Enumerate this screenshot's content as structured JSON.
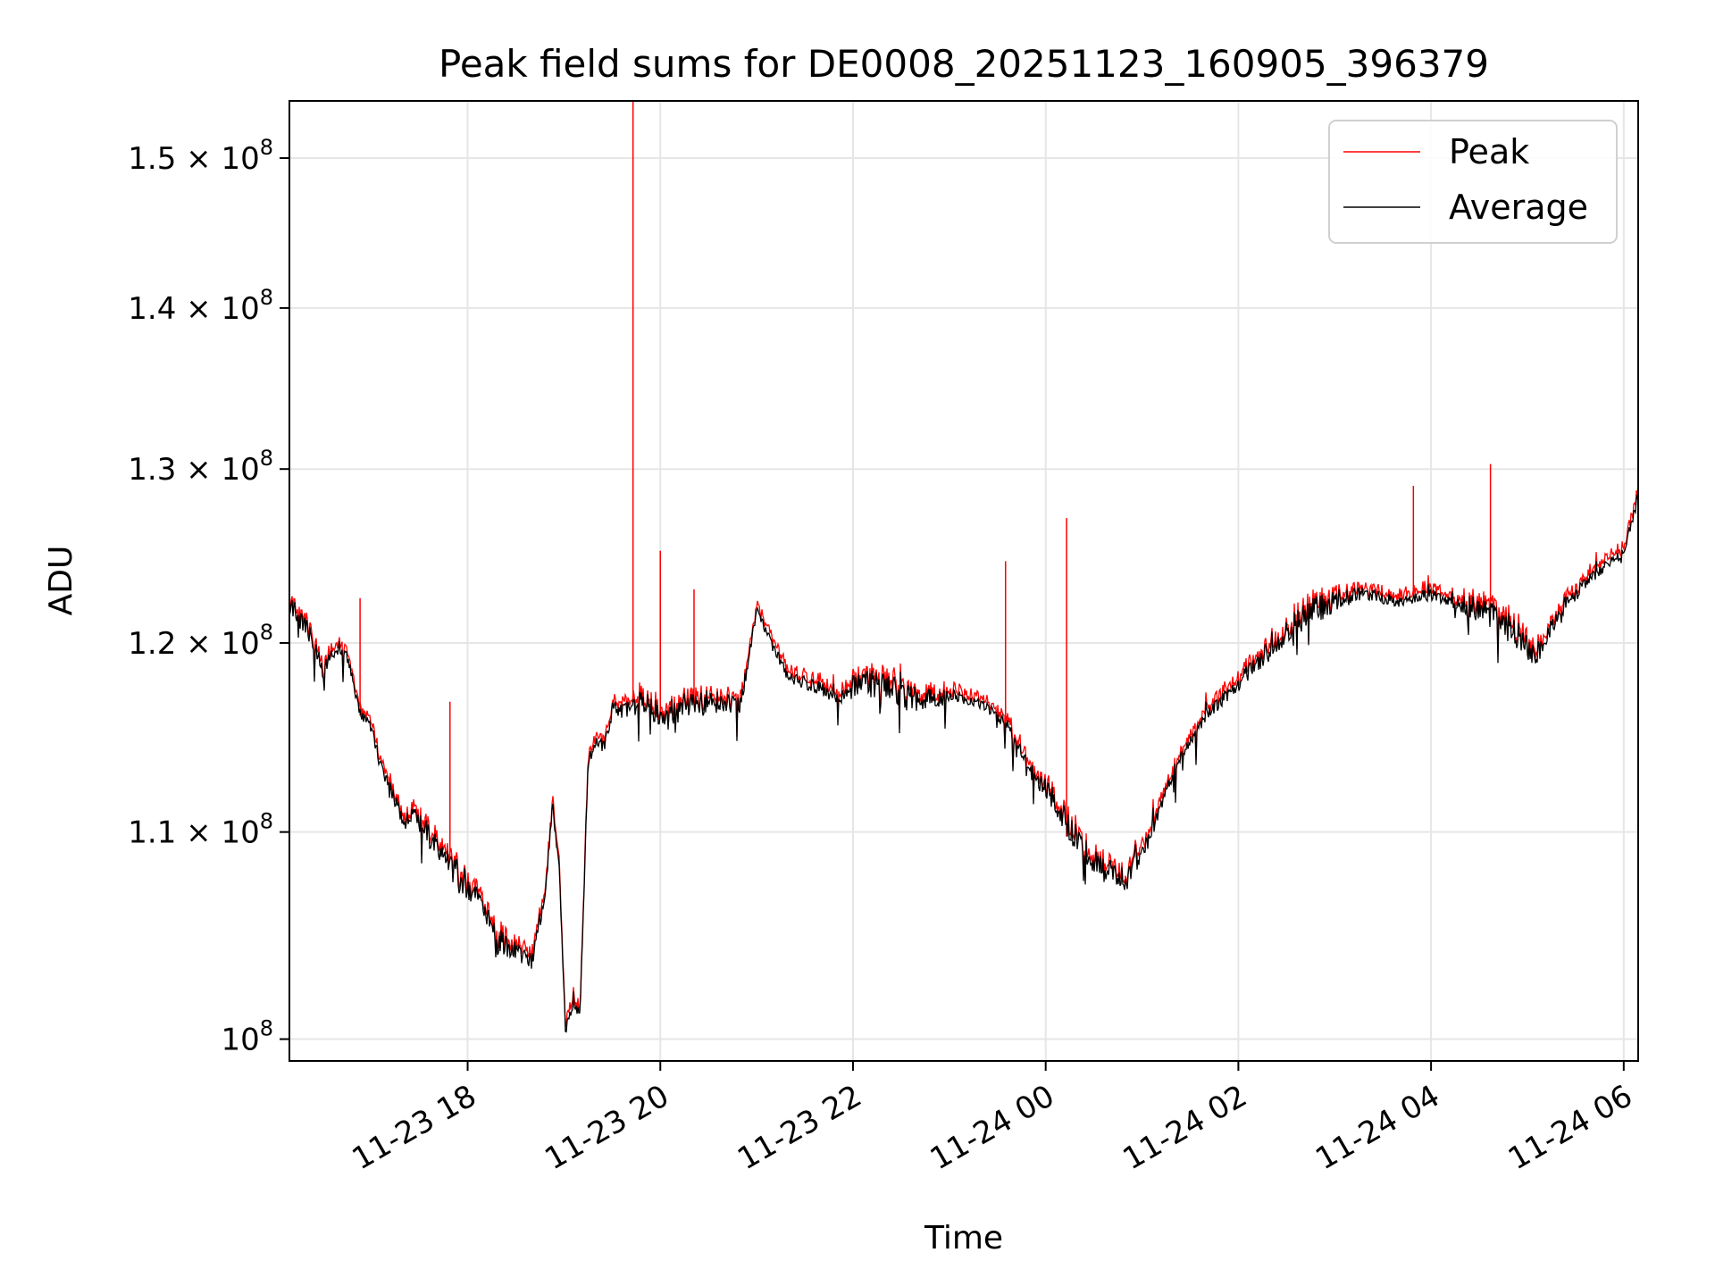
{
  "chart_data": {
    "type": "line",
    "title": "Peak field sums for DE0008_20251123_160905_396379",
    "xlabel": "Time",
    "ylabel": "ADU",
    "y_scale": "log",
    "grid": true,
    "legend_position": "top-right",
    "x_tick_labels": [
      "11-23 18",
      "11-23 20",
      "11-23 22",
      "11-24 00",
      "11-24 02",
      "11-24 04",
      "11-24 06"
    ],
    "x_tick_times": [
      "2025-11-23T18:00",
      "2025-11-23T20:00",
      "2025-11-23T22:00",
      "2025-11-24T00:00",
      "2025-11-24T02:00",
      "2025-11-24T04:00",
      "2025-11-24T06:00"
    ],
    "xlim": [
      "2025-11-23T16:09",
      "2025-11-24T06:09"
    ],
    "ylim": [
      99000000,
      154000000
    ],
    "y_ticks": [
      {
        "value": 100000000,
        "mantissa": "",
        "exponent": "8",
        "label": "10"
      },
      {
        "value": 110000000,
        "mantissa": "1.1",
        "exponent": "8",
        "label": "10"
      },
      {
        "value": 120000000,
        "mantissa": "1.2",
        "exponent": "8",
        "label": "10"
      },
      {
        "value": 130000000,
        "mantissa": "1.3",
        "exponent": "8",
        "label": "10"
      },
      {
        "value": 140000000,
        "mantissa": "1.4",
        "exponent": "8",
        "label": "10"
      },
      {
        "value": 150000000,
        "mantissa": "1.5",
        "exponent": "8",
        "label": "10"
      }
    ],
    "series": [
      {
        "name": "Peak",
        "color": "#ff0000",
        "spikes": [
          {
            "x": "2025-11-23T16:53",
            "y": 122500000
          },
          {
            "x": "2025-11-23T17:49",
            "y": 116800000
          },
          {
            "x": "2025-11-23T19:43",
            "y": 154000000
          },
          {
            "x": "2025-11-23T20:00",
            "y": 125200000
          },
          {
            "x": "2025-11-23T20:21",
            "y": 123000000
          },
          {
            "x": "2025-11-23T23:35",
            "y": 124600000
          },
          {
            "x": "2025-11-24T00:13",
            "y": 127100000
          },
          {
            "x": "2025-11-24T03:49",
            "y": 129000000
          },
          {
            "x": "2025-11-24T04:37",
            "y": 130300000
          }
        ]
      },
      {
        "name": "Average",
        "color": "#000000",
        "x": [
          "2025-11-23T16:09",
          "2025-11-23T16:22",
          "2025-11-23T16:30",
          "2025-11-23T16:37",
          "2025-11-23T16:45",
          "2025-11-23T16:53",
          "2025-11-23T17:00",
          "2025-11-23T17:06",
          "2025-11-23T17:13",
          "2025-11-23T17:20",
          "2025-11-23T17:27",
          "2025-11-23T17:36",
          "2025-11-23T17:47",
          "2025-11-23T17:58",
          "2025-11-23T18:09",
          "2025-11-23T18:20",
          "2025-11-23T18:30",
          "2025-11-23T18:40",
          "2025-11-23T18:48",
          "2025-11-23T18:53",
          "2025-11-23T18:57",
          "2025-11-23T19:01",
          "2025-11-23T19:05",
          "2025-11-23T19:10",
          "2025-11-23T19:15",
          "2025-11-23T19:20",
          "2025-11-23T19:25",
          "2025-11-23T19:30",
          "2025-11-23T19:36",
          "2025-11-23T19:43",
          "2025-11-23T19:50",
          "2025-11-23T19:58",
          "2025-11-23T20:10",
          "2025-11-23T20:30",
          "2025-11-23T20:50",
          "2025-11-23T21:00",
          "2025-11-23T21:10",
          "2025-11-23T21:20",
          "2025-11-23T21:35",
          "2025-11-23T21:50",
          "2025-11-23T22:05",
          "2025-11-23T22:20",
          "2025-11-23T22:40",
          "2025-11-23T23:00",
          "2025-11-23T23:20",
          "2025-11-23T23:35",
          "2025-11-23T23:50",
          "2025-11-24T00:05",
          "2025-11-24T00:20",
          "2025-11-24T00:35",
          "2025-11-24T00:50",
          "2025-11-24T01:05",
          "2025-11-24T01:20",
          "2025-11-24T01:40",
          "2025-11-24T02:00",
          "2025-11-24T02:20",
          "2025-11-24T02:40",
          "2025-11-24T03:00",
          "2025-11-24T03:20",
          "2025-11-24T03:40",
          "2025-11-24T04:00",
          "2025-11-24T04:20",
          "2025-11-24T04:40",
          "2025-11-24T04:55",
          "2025-11-24T05:05",
          "2025-11-24T05:20",
          "2025-11-24T05:40",
          "2025-11-24T06:00",
          "2025-11-24T06:09"
        ],
        "values": [
          122000000,
          120500000,
          118500000,
          119600000,
          119200000,
          116200000,
          115400000,
          113300000,
          112000000,
          110400000,
          110900000,
          109800000,
          108500000,
          107500000,
          106200000,
          104600000,
          104100000,
          103600000,
          106800000,
          111300000,
          108200000,
          100200000,
          101600000,
          101200000,
          113500000,
          114800000,
          114400000,
          116400000,
          116300000,
          116600000,
          116900000,
          115900000,
          116400000,
          116800000,
          116600000,
          121700000,
          119800000,
          118100000,
          117700000,
          117200000,
          117900000,
          117600000,
          116900000,
          117100000,
          116700000,
          115700000,
          113200000,
          111700000,
          109500000,
          108200000,
          107600000,
          109800000,
          113200000,
          116100000,
          117700000,
          119900000,
          121400000,
          122400000,
          122700000,
          122300000,
          122700000,
          122200000,
          121400000,
          120300000,
          119300000,
          121800000,
          123700000,
          125100000,
          128300000
        ]
      }
    ]
  }
}
